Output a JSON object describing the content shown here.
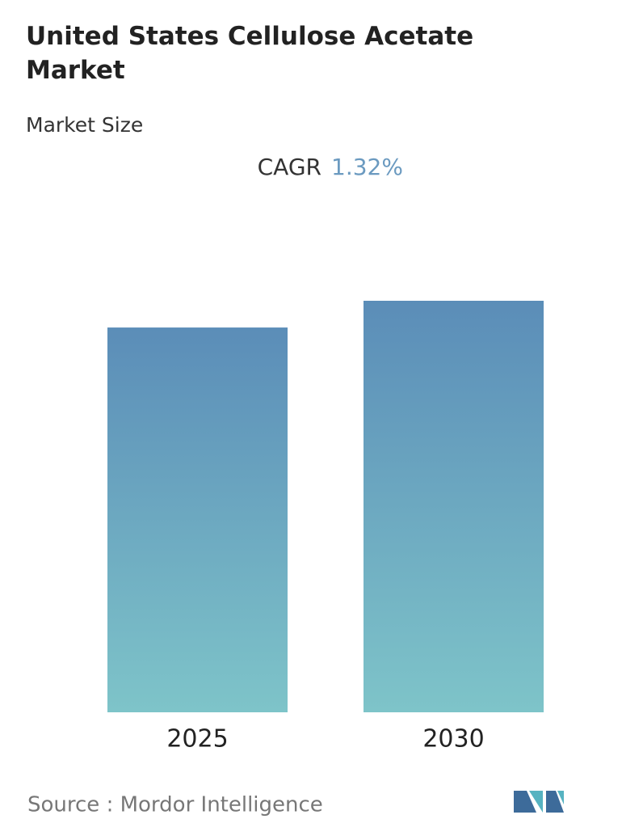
{
  "chart_data": {
    "type": "bar",
    "title": "United States Cellulose Acetate Market",
    "subtitle": "Market Size",
    "cagr_label": "CAGR",
    "cagr_value": "1.32%",
    "categories": [
      "2025",
      "2030"
    ],
    "values": [
      93.5,
      100
    ],
    "ylim": [
      0,
      100
    ],
    "colors": [
      "#5b8db8",
      "#7ec4c9"
    ],
    "source": "Source :  Mordor Intelligence"
  }
}
